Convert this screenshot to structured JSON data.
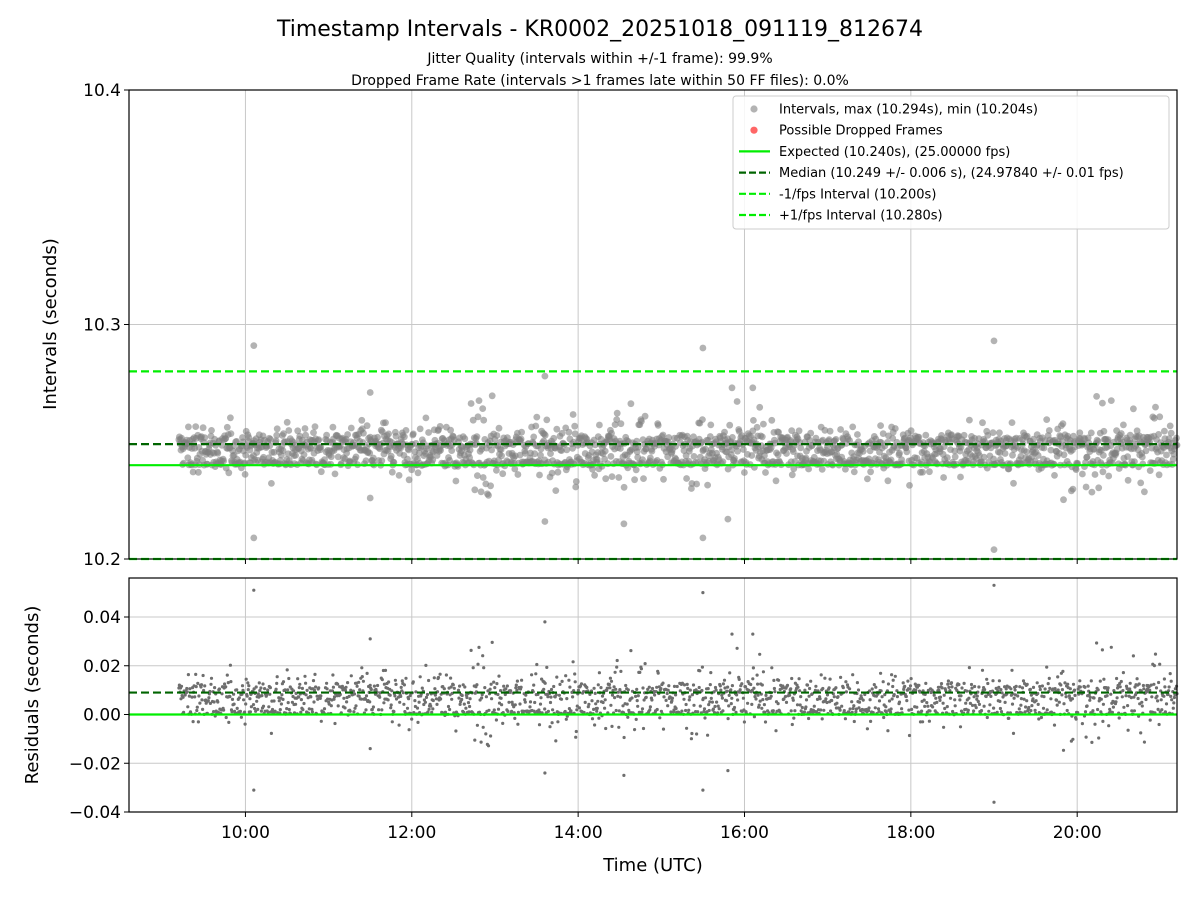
{
  "chart_data": {
    "type": "scatter",
    "title": "Timestamp Intervals - KR0002_20251018_091119_812674",
    "subtitle_lines": [
      "Jitter Quality (intervals within +/-1 frame): 99.9%",
      "Dropped Frame Rate (intervals >1 frames late within 50 FF files): 0.0%"
    ],
    "xlabel": "Time (UTC)",
    "x_ticks": [
      "10:00",
      "12:00",
      "14:00",
      "16:00",
      "18:00",
      "20:00"
    ],
    "x_tick_hours": [
      10,
      12,
      14,
      16,
      18,
      20
    ],
    "xlim_hours": [
      8.6,
      21.2
    ],
    "data_x_range_hours": [
      9.2,
      21.2
    ],
    "top_panel": {
      "ylabel": "Intervals (seconds)",
      "ylim": [
        10.2,
        10.4
      ],
      "y_ticks": [
        "10.2",
        "10.3",
        "10.4"
      ],
      "y_tick_values": [
        10.2,
        10.3,
        10.4
      ],
      "legend": [
        {
          "label": "Intervals, max (10.294s), min (10.204s)",
          "kind": "dot",
          "color": "#808080"
        },
        {
          "label": "Possible Dropped Frames",
          "kind": "dot",
          "color": "#ff0000"
        },
        {
          "label": "Expected (10.240s), (25.00000 fps)",
          "kind": "solid",
          "color": "#00ee00"
        },
        {
          "label": "Median (10.249 +/- 0.006 s), (24.97840 +/- 0.01 fps)",
          "kind": "dashed",
          "color": "#006400"
        },
        {
          "label": "-1/fps Interval (10.200s)",
          "kind": "dashed",
          "color": "#00ee00"
        },
        {
          "label": "+1/fps Interval (10.280s)",
          "kind": "dashed",
          "color": "#00ee00"
        }
      ],
      "expected": 10.24,
      "median": 10.249,
      "lower_interval": 10.2,
      "upper_interval": 10.28,
      "max": 10.294,
      "min": 10.204
    },
    "bottom_panel": {
      "ylabel": "Residuals (seconds)",
      "ylim": [
        -0.04,
        0.056
      ],
      "y_ticks": [
        "−0.04",
        "−0.02",
        "0.00",
        "0.02",
        "0.04"
      ],
      "y_tick_values": [
        -0.04,
        -0.02,
        0.0,
        0.02,
        0.04
      ],
      "zero_line": 0.0,
      "median_residual": 0.009
    },
    "sample_points": {
      "n": 1900,
      "base_seconds": 10.24,
      "outliers": [
        {
          "x": 10.1,
          "y": 10.291
        },
        {
          "x": 10.1,
          "y": 10.209
        },
        {
          "x": 11.5,
          "y": 10.271
        },
        {
          "x": 11.5,
          "y": 10.226
        },
        {
          "x": 13.6,
          "y": 10.278
        },
        {
          "x": 13.6,
          "y": 10.216
        },
        {
          "x": 14.55,
          "y": 10.215
        },
        {
          "x": 15.5,
          "y": 10.29
        },
        {
          "x": 15.5,
          "y": 10.209
        },
        {
          "x": 15.85,
          "y": 10.273
        },
        {
          "x": 15.8,
          "y": 10.217
        },
        {
          "x": 16.1,
          "y": 10.273
        },
        {
          "x": 19.0,
          "y": 10.293
        },
        {
          "x": 19.0,
          "y": 10.204
        }
      ]
    },
    "colors": {
      "points": "#808080",
      "residual_points": "#6e6e6e",
      "expected": "#00ee00",
      "median": "#006400",
      "grid": "#c8c8c8"
    }
  }
}
